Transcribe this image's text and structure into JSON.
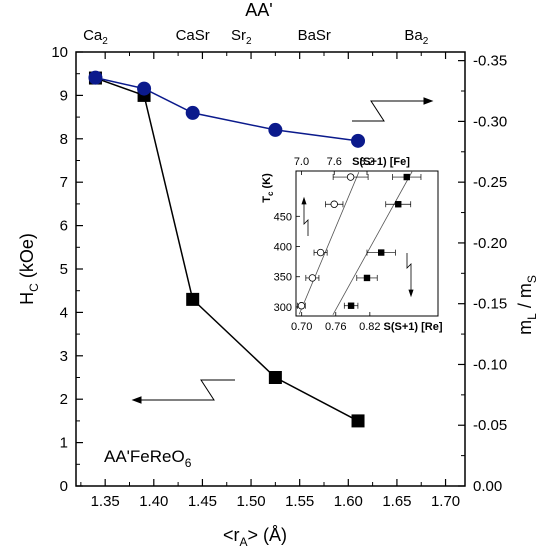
{
  "chart_data": [
    {
      "type": "line",
      "title": "",
      "annotation": {
        "main": "AA'FeReO",
        "sub": "6"
      },
      "top_axis": {
        "label": "AA'",
        "ticks": [
          {
            "x": 1.34,
            "main": "Ca",
            "sub": "2"
          },
          {
            "x": 1.44,
            "main": "CaSr",
            "sub": ""
          },
          {
            "x": 1.49,
            "main": "Sr",
            "sub": "2"
          },
          {
            "x": 1.565,
            "main": "BaSr",
            "sub": ""
          },
          {
            "x": 1.67,
            "main": "Ba",
            "sub": "2"
          }
        ]
      },
      "x_axis": {
        "label_parts": {
          "open": "<r",
          "sub": "A",
          "close": ">  (",
          "unit": "Å",
          "end": ")"
        },
        "range": [
          1.32,
          1.72
        ],
        "ticks": [
          "1.35",
          "1.40",
          "1.45",
          "1.50",
          "1.55",
          "1.60",
          "1.65",
          "1.70"
        ]
      },
      "y_left": {
        "label_parts": {
          "main": "H",
          "sub": "C",
          "unit": " (kOe)"
        },
        "range": [
          0,
          10
        ],
        "ticks": [
          "0",
          "1",
          "2",
          "3",
          "4",
          "5",
          "6",
          "7",
          "8",
          "9",
          "10"
        ]
      },
      "y_right": {
        "label_parts": {
          "a": "m",
          "asub": "L",
          "mid": " / m",
          "bsub": "S"
        },
        "range": [
          0,
          -0.3571
        ],
        "ticks": [
          "0.00",
          "-0.05",
          "-0.10",
          "-0.15",
          "-0.20",
          "-0.25",
          "-0.30",
          "-0.35"
        ]
      },
      "series": [
        {
          "axis": "left",
          "marker": "square",
          "color": "#000000",
          "x": [
            1.34,
            1.39,
            1.44,
            1.525,
            1.61
          ],
          "y": [
            9.4,
            9.0,
            4.3,
            2.5,
            1.5
          ]
        },
        {
          "axis": "right",
          "marker": "circle",
          "color": "#0b1a8c",
          "x": [
            1.34,
            1.39,
            1.44,
            1.525,
            1.61
          ],
          "y": [
            -0.336,
            -0.327,
            -0.307,
            -0.293,
            -0.284
          ]
        }
      ]
    },
    {
      "type": "scatter",
      "title": "",
      "x_bottom": {
        "label": "S(S+1)  [Re]",
        "range": [
          0.69,
          0.94
        ],
        "ticks": [
          "0.70",
          "0.76",
          "0.82"
        ]
      },
      "x_top": {
        "label": "S(S+1)  [Fe]",
        "range": [
          6.9,
          9.5
        ],
        "ticks": [
          "7.0",
          "7.6",
          "8.2"
        ]
      },
      "y_axis": {
        "label_parts": {
          "main": "T",
          "sub": "c",
          "unit": " (K)"
        },
        "range": [
          285,
          525
        ],
        "ticks": [
          "300",
          "350",
          "400",
          "450"
        ]
      },
      "series": [
        {
          "marker": "open-circle",
          "x_axis": "top",
          "x": [
            7.0,
            7.2,
            7.35,
            7.6,
            7.9
          ],
          "y": [
            302,
            348,
            390,
            470,
            515
          ],
          "xerr": [
            0.07,
            0.12,
            0.12,
            0.16,
            0.32
          ],
          "fit": {
            "x": [
              6.96,
              8.05
            ],
            "y": [
              288,
              523
            ]
          }
        },
        {
          "marker": "filled-square",
          "x_axis": "bottom",
          "x": [
            0.787,
            0.815,
            0.84,
            0.87,
            0.885
          ],
          "y": [
            302,
            348,
            390,
            470,
            515
          ],
          "xerr": [
            0.012,
            0.018,
            0.025,
            0.022,
            0.025
          ],
          "fit": {
            "x": [
              0.755,
              0.895
            ],
            "y": [
              287,
              525
            ]
          }
        }
      ]
    }
  ]
}
